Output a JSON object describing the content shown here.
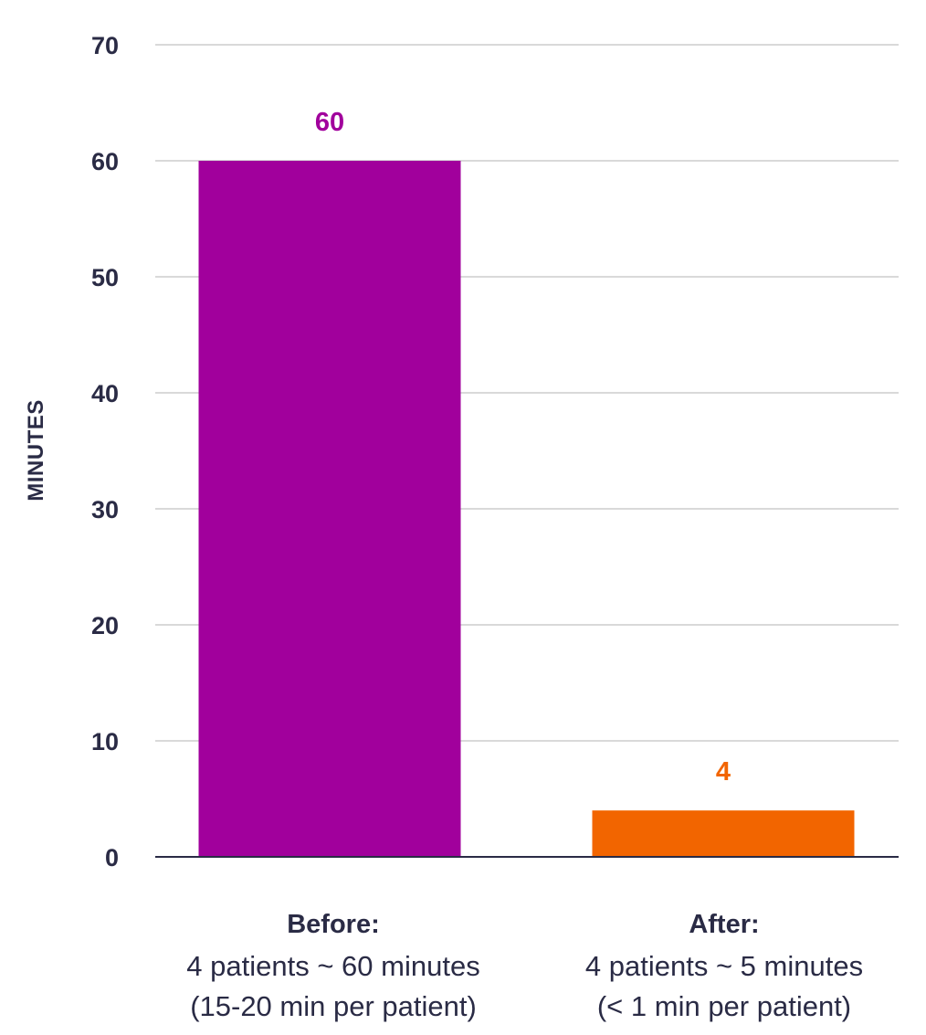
{
  "chart_data": {
    "type": "bar",
    "title": "",
    "xlabel": "",
    "ylabel": "MINUTES",
    "ylim": [
      0,
      70
    ],
    "yticks": [
      0,
      10,
      20,
      30,
      40,
      50,
      60,
      70
    ],
    "grid": true,
    "categories": [
      {
        "title": "Before:",
        "lines": [
          "4 patients ~ 60 minutes",
          "(15-20 min per patient)"
        ]
      },
      {
        "title": "After:",
        "lines": [
          "4 patients ~ 5 minutes",
          "(< 1 min per patient)"
        ]
      }
    ],
    "values": [
      60,
      4
    ],
    "data_labels": [
      "60",
      "4"
    ],
    "colors": [
      "#a1009c",
      "#f26500"
    ]
  },
  "colors": {
    "text": "#2a2b45",
    "grid": "#d9d9d9",
    "axis": "#2a2b45"
  }
}
